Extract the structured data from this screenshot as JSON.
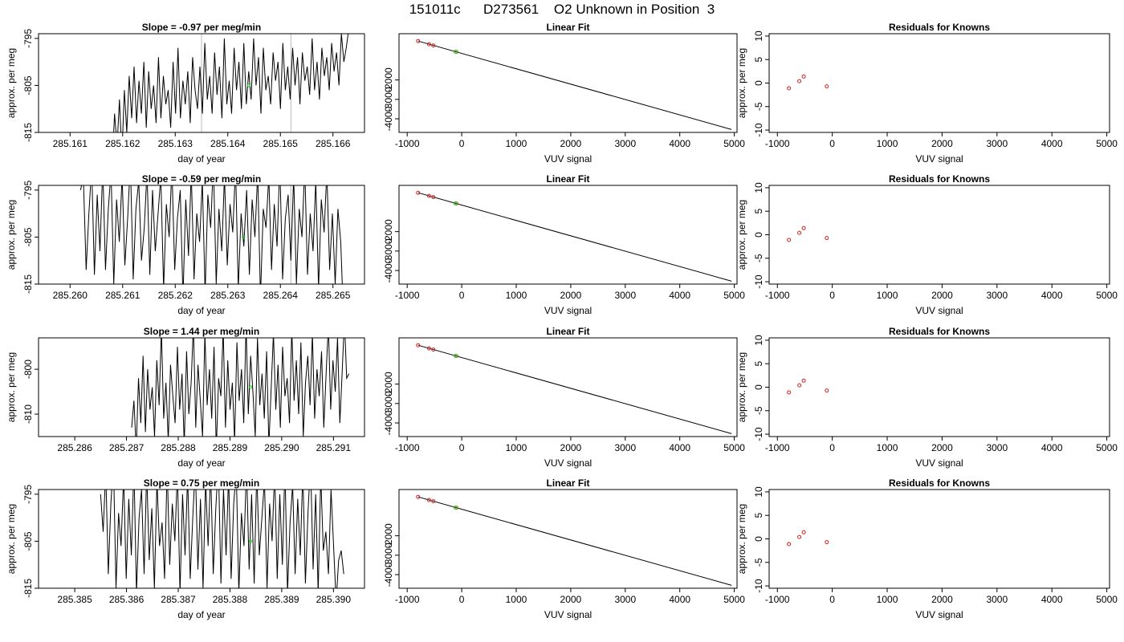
{
  "figure": {
    "title": "151011c      D273561    O2 Unknown in Position  3"
  },
  "chart_data": [
    {
      "type": "line",
      "title": "Slope =  -0.97  per meg/min",
      "xlabel": "day of year",
      "ylabel": "approx. per meg",
      "xlim": [
        285.1604,
        285.1666
      ],
      "ylim": [
        -815,
        -794
      ],
      "x_ticks": [
        "285.161",
        "285.162",
        "285.163",
        "285.164",
        "285.165",
        "285.166"
      ],
      "x_tick_values": [
        285.161,
        285.162,
        285.163,
        285.164,
        285.165,
        285.166
      ],
      "y_ticks": [
        "-815",
        "-805",
        "-795"
      ],
      "y_tick_values": [
        -815,
        -805,
        -795
      ],
      "data_start": 285.1618,
      "data_end": 285.1663,
      "marker": {
        "x": 285.1644,
        "y": -805,
        "color": "#22cc22"
      },
      "vlines": [
        285.1635,
        285.1652
      ],
      "series_y": [
        -822,
        -811,
        -818,
        -808,
        -820,
        -806,
        -815,
        -803,
        -812,
        -801,
        -813,
        -804,
        -811,
        -800,
        -814,
        -802,
        -810,
        -805,
        -813,
        -799,
        -812,
        -803,
        -809,
        -806,
        -814,
        -800,
        -811,
        -797,
        -812,
        -804,
        -809,
        -802,
        -813,
        -799,
        -806,
        -810,
        -801,
        -811,
        -796,
        -808,
        -803,
        -811,
        -798,
        -807,
        -801,
        -812,
        -795,
        -809,
        -804,
        -811,
        -797,
        -806,
        -800,
        -810,
        -796,
        -809,
        -802,
        -808,
        -795,
        -805,
        -799,
        -811,
        -797,
        -806,
        -803,
        -809,
        -798,
        -804,
        -800,
        -810,
        -796,
        -806,
        -801,
        -808,
        -797,
        -805,
        -799,
        -809,
        -798,
        -804,
        -801,
        -807,
        -795,
        -806,
        -800,
        -808,
        -797,
        -803,
        -799,
        -806,
        -796,
        -802,
        -798,
        -805,
        -794,
        -800,
        -797,
        -793
      ]
    },
    {
      "type": "line",
      "title": "Slope =  -0.59  per meg/min",
      "xlabel": "day of year",
      "ylabel": "approx. per meg",
      "xlim": [
        285.2594,
        285.2656
      ],
      "ylim": [
        -815,
        -794
      ],
      "x_ticks": [
        "285.260",
        "285.261",
        "285.262",
        "285.263",
        "285.264",
        "285.265"
      ],
      "x_tick_values": [
        285.26,
        285.261,
        285.262,
        285.263,
        285.264,
        285.265
      ],
      "y_ticks": [
        "-815",
        "-805",
        "-795"
      ],
      "y_tick_values": [
        -815,
        -805,
        -795
      ],
      "data_start": 285.2602,
      "data_end": 285.2652,
      "marker": {
        "x": 285.2633,
        "y": -805,
        "color": "#22cc22"
      },
      "vlines": [
        285.2642
      ],
      "series_y": [
        -795,
        -792,
        -812,
        -800,
        -790,
        -813,
        -796,
        -808,
        -790,
        -812,
        -799,
        -791,
        -815,
        -797,
        -806,
        -792,
        -811,
        -801,
        -789,
        -814,
        -799,
        -793,
        -810,
        -803,
        -791,
        -813,
        -795,
        -808,
        -800,
        -792,
        -816,
        -798,
        -805,
        -790,
        -812,
        -801,
        -795,
        -818,
        -797,
        -809,
        -791,
        -814,
        -800,
        -806,
        -793,
        -817,
        -796,
        -803,
        -789,
        -815,
        -799,
        -808,
        -792,
        -811,
        -798,
        -804,
        -790,
        -816,
        -800,
        -807,
        -795,
        -813,
        -797,
        -805,
        -791,
        -818,
        -799,
        -803,
        -792,
        -812,
        -798,
        -807,
        -789,
        -814,
        -801,
        -796,
        -810,
        -792,
        -815,
        -799,
        -805,
        -790,
        -813,
        -800,
        -808,
        -793,
        -816,
        -797,
        -804,
        -791,
        -812,
        -800,
        -815,
        -799,
        -806,
        -822
      ]
    },
    {
      "type": "line",
      "title": "Slope =  1.44  per meg/min",
      "xlabel": "day of year",
      "ylabel": "approx. per meg",
      "xlim": [
        285.2853,
        285.2916
      ],
      "ylim": [
        -815,
        -793
      ],
      "x_ticks": [
        "285.286",
        "285.287",
        "285.288",
        "285.289",
        "285.290",
        "285.291"
      ],
      "x_tick_values": [
        285.286,
        285.287,
        285.288,
        285.289,
        285.29,
        285.291
      ],
      "y_ticks": [
        "-810",
        "-800"
      ],
      "y_tick_values": [
        -810,
        -800
      ],
      "data_start": 285.2871,
      "data_end": 285.2913,
      "marker": {
        "x": 285.2894,
        "y": -804,
        "color": "#22cc22"
      },
      "vlines": [],
      "series_y": [
        -813,
        -807,
        -818,
        -802,
        -812,
        -797,
        -814,
        -800,
        -809,
        -804,
        -815,
        -798,
        -808,
        -791,
        -811,
        -803,
        -816,
        -799,
        -806,
        -812,
        -795,
        -809,
        -801,
        -817,
        -796,
        -810,
        -803,
        -790,
        -813,
        -799,
        -807,
        -815,
        -792,
        -808,
        -800,
        -811,
        -795,
        -818,
        -802,
        -806,
        -791,
        -813,
        -798,
        -809,
        -803,
        -816,
        -794,
        -807,
        -800,
        -812,
        -790,
        -810,
        -797,
        -805,
        -815,
        -793,
        -808,
        -801,
        -811,
        -796,
        -817,
        -804,
        -792,
        -809,
        -799,
        -813,
        -795,
        -806,
        -802,
        -812,
        -791,
        -807,
        -798,
        -810,
        -794,
        -815,
        -803,
        -797,
        -808,
        -792,
        -811,
        -800,
        -806,
        -796,
        -813,
        -801,
        -790,
        -809,
        -798,
        -805,
        -793,
        -812,
        -801,
        -789,
        -802,
        -801
      ]
    },
    {
      "type": "line",
      "title": "Slope =  0.75  per meg/min",
      "xlabel": "day of year",
      "ylabel": "approx. per meg",
      "xlim": [
        285.3843,
        285.3906
      ],
      "ylim": [
        -815,
        -794
      ],
      "x_ticks": [
        "285.385",
        "285.386",
        "285.387",
        "285.388",
        "285.389",
        "285.390"
      ],
      "x_tick_values": [
        285.385,
        285.386,
        285.387,
        285.388,
        285.389,
        285.39
      ],
      "y_ticks": [
        "-815",
        "-805",
        "-795"
      ],
      "y_tick_values": [
        -815,
        -805,
        -795
      ],
      "data_start": 285.3855,
      "data_end": 285.3902,
      "marker": {
        "x": 285.3884,
        "y": -805,
        "color": "#22cc22"
      },
      "vlines": [],
      "series_y": [
        -795,
        -803,
        -790,
        -812,
        -797,
        -788,
        -815,
        -799,
        -806,
        -791,
        -813,
        -796,
        -808,
        -789,
        -816,
        -800,
        -794,
        -812,
        -790,
        -809,
        -798,
        -815,
        -792,
        -806,
        -801,
        -813,
        -789,
        -810,
        -797,
        -805,
        -790,
        -816,
        -795,
        -808,
        -791,
        -813,
        -800,
        -789,
        -811,
        -796,
        -815,
        -792,
        -806,
        -790,
        -812,
        -798,
        -788,
        -814,
        -794,
        -808,
        -791,
        -813,
        -797,
        -790,
        -816,
        -799,
        -806,
        -789,
        -811,
        -795,
        -814,
        -790,
        -808,
        -800,
        -792,
        -815,
        -797,
        -805,
        -790,
        -813,
        -795,
        -810,
        -789,
        -816,
        -801,
        -793,
        -812,
        -796,
        -808,
        -790,
        -814,
        -799,
        -788,
        -811,
        -795,
        -816,
        -791,
        -807,
        -803,
        -812,
        -794,
        -806,
        -818,
        -809,
        -807,
        -812
      ]
    },
    {
      "type": "line",
      "title": "Linear Fit",
      "xlabel": "VUV signal",
      "ylabel": "",
      "xlim": [
        -1150,
        5050
      ],
      "ylim": [
        -4700,
        380
      ],
      "x_ticks": [
        "-1000",
        "0",
        "1000",
        "2000",
        "3000",
        "4000",
        "5000"
      ],
      "x_tick_values": [
        -1000,
        0,
        1000,
        2000,
        3000,
        4000,
        5000
      ],
      "y_ticks": [
        "-4000",
        "-3000",
        "-2000"
      ],
      "y_tick_values": [
        -4000,
        -3000,
        -2000
      ],
      "line": {
        "x": [
          -800,
          4950
        ],
        "y": [
          0,
          -4550
        ]
      },
      "knowns": {
        "x": [
          -800,
          -600,
          -520,
          -100
        ],
        "y": [
          0,
          -160,
          -225,
          -555
        ]
      },
      "unknown": {
        "x": [
          -110
        ],
        "y": [
          -547
        ]
      }
    },
    {
      "type": "line",
      "title": "Linear Fit",
      "xlabel": "VUV signal",
      "ylabel": "",
      "xlim": [
        -1150,
        5050
      ],
      "ylim": [
        -4700,
        380
      ],
      "x_ticks": [
        "-1000",
        "0",
        "1000",
        "2000",
        "3000",
        "4000",
        "5000"
      ],
      "x_tick_values": [
        -1000,
        0,
        1000,
        2000,
        3000,
        4000,
        5000
      ],
      "y_ticks": [
        "-4000",
        "-3000",
        "-2000"
      ],
      "y_tick_values": [
        -4000,
        -3000,
        -2000
      ],
      "line": {
        "x": [
          -800,
          4950
        ],
        "y": [
          0,
          -4550
        ]
      },
      "knowns": {
        "x": [
          -800,
          -600,
          -520,
          -100
        ],
        "y": [
          0,
          -160,
          -225,
          -555
        ]
      },
      "unknown": {
        "x": [
          -110
        ],
        "y": [
          -547
        ]
      }
    },
    {
      "type": "line",
      "title": "Linear Fit",
      "xlabel": "VUV signal",
      "ylabel": "",
      "xlim": [
        -1150,
        5050
      ],
      "ylim": [
        -4700,
        380
      ],
      "x_ticks": [
        "-1000",
        "0",
        "1000",
        "2000",
        "3000",
        "4000",
        "5000"
      ],
      "x_tick_values": [
        -1000,
        0,
        1000,
        2000,
        3000,
        4000,
        5000
      ],
      "y_ticks": [
        "-4000",
        "-3000",
        "-2000"
      ],
      "y_tick_values": [
        -4000,
        -3000,
        -2000
      ],
      "line": {
        "x": [
          -800,
          4950
        ],
        "y": [
          0,
          -4550
        ]
      },
      "knowns": {
        "x": [
          -800,
          -600,
          -520,
          -100
        ],
        "y": [
          0,
          -160,
          -225,
          -555
        ]
      },
      "unknown": {
        "x": [
          -110
        ],
        "y": [
          -547
        ]
      }
    },
    {
      "type": "line",
      "title": "Linear Fit",
      "xlabel": "VUV signal",
      "ylabel": "",
      "xlim": [
        -1150,
        5050
      ],
      "ylim": [
        -4700,
        380
      ],
      "x_ticks": [
        "-1000",
        "0",
        "1000",
        "2000",
        "3000",
        "4000",
        "5000"
      ],
      "x_tick_values": [
        -1000,
        0,
        1000,
        2000,
        3000,
        4000,
        5000
      ],
      "y_ticks": [
        "-4000",
        "-3000",
        "-2000"
      ],
      "y_tick_values": [
        -4000,
        -3000,
        -2000
      ],
      "line": {
        "x": [
          -800,
          4950
        ],
        "y": [
          0,
          -4550
        ]
      },
      "knowns": {
        "x": [
          -800,
          -600,
          -520,
          -100
        ],
        "y": [
          0,
          -160,
          -225,
          -555
        ]
      },
      "unknown": {
        "x": [
          -110
        ],
        "y": [
          -547
        ]
      }
    },
    {
      "type": "scatter",
      "title": "Residuals for Knowns",
      "xlabel": "VUV signal",
      "ylabel": "approx. per meg",
      "xlim": [
        -1150,
        5050
      ],
      "ylim": [
        -10.5,
        10.5
      ],
      "x_ticks": [
        "-1000",
        "0",
        "1000",
        "2000",
        "3000",
        "4000",
        "5000"
      ],
      "x_tick_values": [
        -1000,
        0,
        1000,
        2000,
        3000,
        4000,
        5000
      ],
      "y_ticks": [
        "-10",
        "-5",
        "0",
        "5",
        "10"
      ],
      "y_tick_values": [
        -10,
        -5,
        0,
        5,
        10
      ],
      "points": {
        "x": [
          -790,
          -600,
          -520,
          -100
        ],
        "y": [
          -1.1,
          0.4,
          1.4,
          -0.7
        ]
      }
    },
    {
      "type": "scatter",
      "title": "Residuals for Knowns",
      "xlabel": "VUV signal",
      "ylabel": "approx. per meg",
      "xlim": [
        -1150,
        5050
      ],
      "ylim": [
        -10.5,
        10.5
      ],
      "x_ticks": [
        "-1000",
        "0",
        "1000",
        "2000",
        "3000",
        "4000",
        "5000"
      ],
      "x_tick_values": [
        -1000,
        0,
        1000,
        2000,
        3000,
        4000,
        5000
      ],
      "y_ticks": [
        "-10",
        "-5",
        "0",
        "5",
        "10"
      ],
      "y_tick_values": [
        -10,
        -5,
        0,
        5,
        10
      ],
      "points": {
        "x": [
          -790,
          -600,
          -520,
          -100
        ],
        "y": [
          -1.1,
          0.4,
          1.4,
          -0.7
        ]
      }
    },
    {
      "type": "scatter",
      "title": "Residuals for Knowns",
      "xlabel": "VUV signal",
      "ylabel": "approx. per meg",
      "xlim": [
        -1150,
        5050
      ],
      "ylim": [
        -10.5,
        10.5
      ],
      "x_ticks": [
        "-1000",
        "0",
        "1000",
        "2000",
        "3000",
        "4000",
        "5000"
      ],
      "x_tick_values": [
        -1000,
        0,
        1000,
        2000,
        3000,
        4000,
        5000
      ],
      "y_ticks": [
        "-10",
        "-5",
        "0",
        "5",
        "10"
      ],
      "y_tick_values": [
        -10,
        -5,
        0,
        5,
        10
      ],
      "points": {
        "x": [
          -790,
          -600,
          -520,
          -100
        ],
        "y": [
          -1.1,
          0.4,
          1.4,
          -0.7
        ]
      }
    },
    {
      "type": "scatter",
      "title": "Residuals for Knowns",
      "xlabel": "VUV signal",
      "ylabel": "approx. per meg",
      "xlim": [
        -1150,
        5050
      ],
      "ylim": [
        -10.5,
        10.5
      ],
      "x_ticks": [
        "-1000",
        "0",
        "1000",
        "2000",
        "3000",
        "4000",
        "5000"
      ],
      "x_tick_values": [
        -1000,
        0,
        1000,
        2000,
        3000,
        4000,
        5000
      ],
      "y_ticks": [
        "-10",
        "-5",
        "0",
        "5",
        "10"
      ],
      "y_tick_values": [
        -10,
        -5,
        0,
        5,
        10
      ],
      "points": {
        "x": [
          -790,
          -600,
          -520,
          -100
        ],
        "y": [
          -1.1,
          0.4,
          1.4,
          -0.7
        ]
      }
    }
  ],
  "colors": {
    "line": "#000000",
    "known_points": "#cc2222",
    "unknown_point": "#22cc22",
    "vline": "#bbbbbb"
  }
}
